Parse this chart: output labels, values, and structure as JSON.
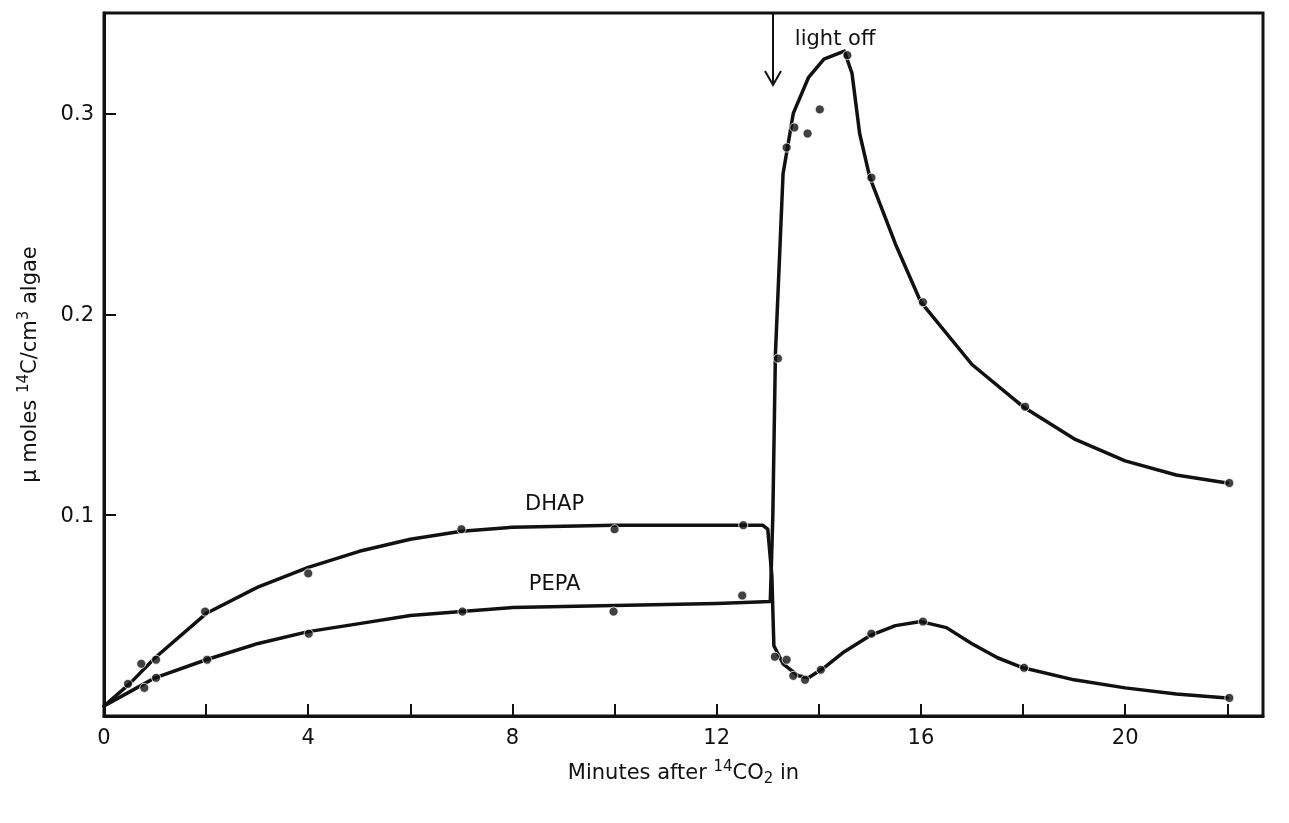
{
  "chart_data": {
    "type": "line",
    "xlabel": "Minutes after $^{14}$CO$_{2}$ in",
    "ylabel": "μ moles $^{14}$C/cm$^{3}$ algae",
    "xlim": [
      0,
      22.7
    ],
    "ylim": [
      0,
      0.35
    ],
    "xticks": [
      0,
      {
        "value": 2,
        "label": null
      },
      4,
      {
        "value": 6,
        "label": null
      },
      8,
      {
        "value": 10,
        "label": null
      },
      12,
      {
        "value": 14,
        "label": null
      },
      16,
      {
        "value": 18,
        "label": null
      },
      20,
      {
        "value": 22,
        "label": null
      }
    ],
    "yticks": [
      0.1,
      0.2,
      0.3
    ],
    "grid": false,
    "ref_lines": [
      {
        "axis": "x",
        "value": 13.1,
        "label": "light off"
      }
    ],
    "series": [
      {
        "name": "DHAP",
        "color": "#111111",
        "marker": "none",
        "x": [
          0,
          0.5,
          1,
          2,
          3,
          4,
          5,
          6,
          7,
          8,
          10,
          12,
          12.9,
          13.0,
          13.08,
          13.12,
          13.3,
          13.6,
          13.8,
          14.1,
          14.5,
          15,
          15.5,
          16,
          16.5,
          17,
          17.5,
          18,
          19,
          20,
          21,
          22
        ],
        "values": [
          0.005,
          0.016,
          0.029,
          0.051,
          0.064,
          0.074,
          0.082,
          0.088,
          0.092,
          0.094,
          0.095,
          0.095,
          0.095,
          0.093,
          0.07,
          0.035,
          0.026,
          0.02,
          0.019,
          0.024,
          0.032,
          0.04,
          0.045,
          0.047,
          0.044,
          0.036,
          0.029,
          0.024,
          0.018,
          0.014,
          0.011,
          0.009
        ]
      },
      {
        "name": "PEPA",
        "color": "#111111",
        "marker": "none",
        "x": [
          0,
          0.5,
          1,
          2,
          3,
          4,
          5,
          6,
          7,
          8,
          10,
          12,
          13.05,
          13.1,
          13.15,
          13.3,
          13.5,
          13.8,
          14.1,
          14.5,
          14.65,
          14.8,
          15,
          15.5,
          16,
          17,
          18,
          19,
          20,
          21,
          22
        ],
        "values": [
          0.005,
          0.012,
          0.019,
          0.028,
          0.036,
          0.042,
          0.046,
          0.05,
          0.052,
          0.054,
          0.055,
          0.056,
          0.057,
          0.1,
          0.18,
          0.27,
          0.3,
          0.318,
          0.327,
          0.331,
          0.32,
          0.29,
          0.268,
          0.235,
          0.206,
          0.175,
          0.154,
          0.138,
          0.127,
          0.12,
          0.116
        ]
      },
      {
        "type": "scatter",
        "color": "#111111",
        "marker": "circle",
        "x": [
          0.47,
          0.73,
          1.02,
          1.98,
          4.0,
          7.0,
          10.0,
          12.52,
          13.14,
          13.37,
          13.5,
          13.73,
          14.04,
          15.03,
          16.04,
          18.02,
          22.04
        ],
        "values": [
          0.016,
          0.026,
          0.028,
          0.052,
          0.071,
          0.093,
          0.093,
          0.095,
          0.0295,
          0.028,
          0.02,
          0.018,
          0.023,
          0.041,
          0.047,
          0.024,
          0.009
        ]
      },
      {
        "type": "scatter",
        "color": "#111111",
        "marker": "circle",
        "x": [
          0.79,
          1.02,
          2.02,
          4.01,
          7.02,
          9.98,
          12.5,
          13.2,
          13.37,
          13.52,
          13.78,
          14.02,
          14.56,
          15.03,
          16.04,
          18.04,
          22.04
        ],
        "values": [
          0.014,
          0.019,
          0.028,
          0.041,
          0.052,
          0.052,
          0.06,
          0.178,
          0.283,
          0.293,
          0.29,
          0.302,
          0.329,
          0.268,
          0.206,
          0.154,
          0.116
        ]
      }
    ]
  }
}
